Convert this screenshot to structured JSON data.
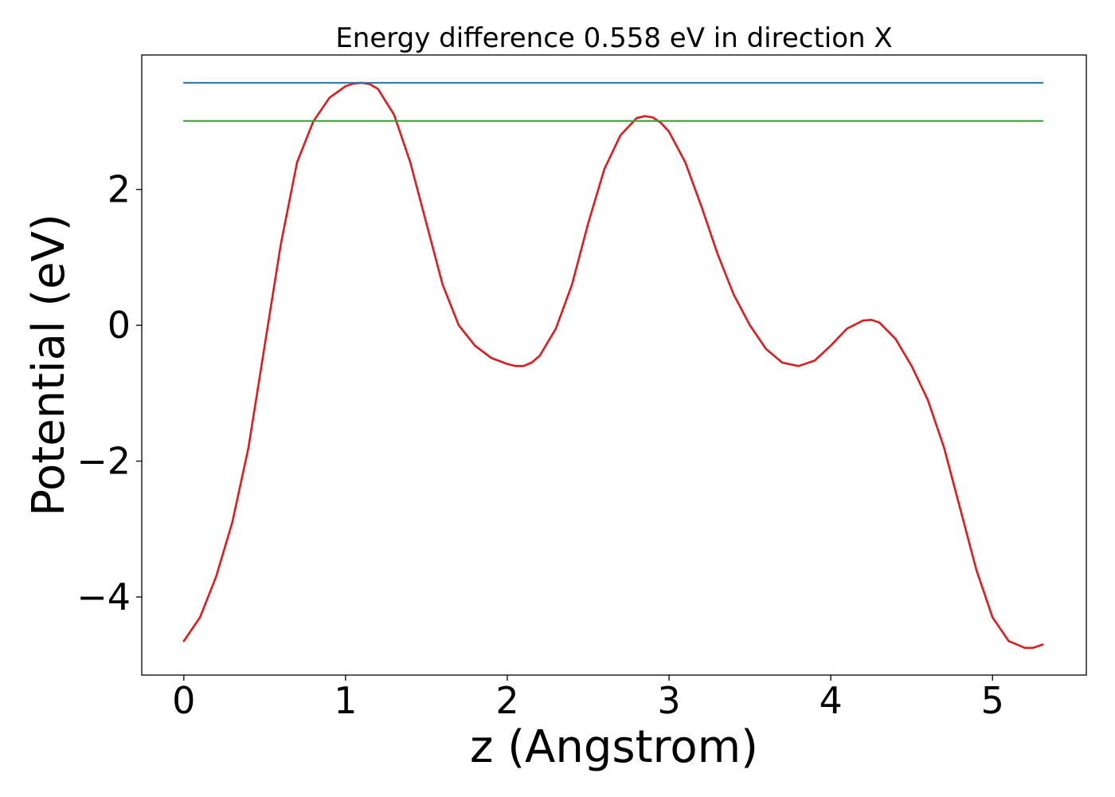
{
  "chart_data": {
    "type": "line",
    "title": "Energy difference 0.558 eV in direction X",
    "xlabel": "z (Angstrom)",
    "ylabel": "Potential (eV)",
    "xlim": [
      -0.26,
      5.58
    ],
    "ylim": [
      -5.15,
      3.98
    ],
    "x_ticks": [
      0,
      1,
      2,
      3,
      4,
      5
    ],
    "x_tick_labels": [
      "0",
      "1",
      "2",
      "3",
      "4",
      "5"
    ],
    "y_ticks": [
      -4,
      -2,
      0,
      2
    ],
    "y_tick_labels": [
      "−4",
      "−2",
      "0",
      "2"
    ],
    "grid": false,
    "series": [
      {
        "color": "#e31a1c",
        "x": [
          0,
          0.1,
          0.2,
          0.3,
          0.4,
          0.5,
          0.6,
          0.7,
          0.8,
          0.9,
          1.0,
          1.05,
          1.1,
          1.15,
          1.2,
          1.3,
          1.4,
          1.5,
          1.6,
          1.7,
          1.8,
          1.9,
          2.0,
          2.05,
          2.1,
          2.15,
          2.2,
          2.3,
          2.4,
          2.5,
          2.6,
          2.7,
          2.8,
          2.85,
          2.9,
          2.95,
          3.0,
          3.1,
          3.2,
          3.3,
          3.4,
          3.5,
          3.6,
          3.7,
          3.8,
          3.9,
          4.0,
          4.1,
          4.2,
          4.25,
          4.3,
          4.4,
          4.5,
          4.6,
          4.7,
          4.8,
          4.9,
          5.0,
          5.1,
          5.2,
          5.25,
          5.31
        ],
        "y": [
          -4.65,
          -4.3,
          -3.7,
          -2.9,
          -1.8,
          -0.3,
          1.2,
          2.4,
          3.0,
          3.35,
          3.52,
          3.56,
          3.57,
          3.55,
          3.48,
          3.1,
          2.4,
          1.5,
          0.6,
          0.0,
          -0.3,
          -0.48,
          -0.57,
          -0.6,
          -0.6,
          -0.55,
          -0.45,
          -0.05,
          0.6,
          1.5,
          2.3,
          2.8,
          3.05,
          3.08,
          3.06,
          2.98,
          2.85,
          2.4,
          1.75,
          1.05,
          0.45,
          0.0,
          -0.35,
          -0.55,
          -0.6,
          -0.52,
          -0.3,
          -0.05,
          0.07,
          0.08,
          0.04,
          -0.2,
          -0.6,
          -1.1,
          -1.8,
          -2.7,
          -3.6,
          -4.3,
          -4.65,
          -4.75,
          -4.75,
          -4.7
        ]
      },
      {
        "color": "#1f77b4",
        "x": [
          0,
          5.31
        ],
        "y": [
          3.57,
          3.57
        ]
      },
      {
        "color": "#33a02c",
        "x": [
          0,
          5.31
        ],
        "y": [
          3.01,
          3.01
        ]
      }
    ]
  }
}
